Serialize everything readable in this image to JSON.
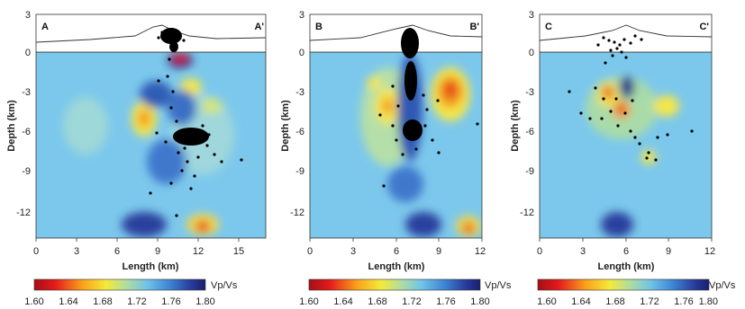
{
  "panels": [
    {
      "label_left": "A",
      "label_right": "A'",
      "ylabel": "Depth (km)",
      "xlabel": "Length (km)",
      "x_ticks": [
        "0",
        "3",
        "6",
        "9",
        "12",
        "15"
      ],
      "y_ticks": [
        "3",
        "0",
        "-3",
        "-6",
        "-9",
        "-12"
      ],
      "xlim": [
        0,
        17
      ],
      "ylim": [
        -14,
        3
      ]
    },
    {
      "label_left": "B",
      "label_right": "B'",
      "ylabel": "Depth (km)",
      "xlabel": "Length (km)",
      "x_ticks": [
        "0",
        "3",
        "6",
        "9",
        "12"
      ],
      "y_ticks": [
        "3",
        "0",
        "-3",
        "-6",
        "-9",
        "-12"
      ],
      "xlim": [
        0,
        12
      ],
      "ylim": [
        -14,
        3
      ]
    },
    {
      "label_left": "C",
      "label_right": "C'",
      "ylabel": "Depth (km)",
      "xlabel": "Length (km)",
      "x_ticks": [
        "0",
        "3",
        "6",
        "9",
        "12"
      ],
      "y_ticks": [
        "3",
        "0",
        "-3",
        "-6",
        "-9",
        "-12"
      ],
      "xlim": [
        0,
        12
      ],
      "ylim": [
        -14,
        3
      ]
    }
  ],
  "colorbar": {
    "unit": "Vp/Vs",
    "ticks": [
      "1.60",
      "1.64",
      "1.68",
      "1.72",
      "1.76",
      "1.80"
    ],
    "colors": [
      "#d7191c",
      "#f9a11b",
      "#f5ea3a",
      "#a9dba8",
      "#5ab4e6",
      "#2d5db5",
      "#1a1f6d"
    ]
  }
}
